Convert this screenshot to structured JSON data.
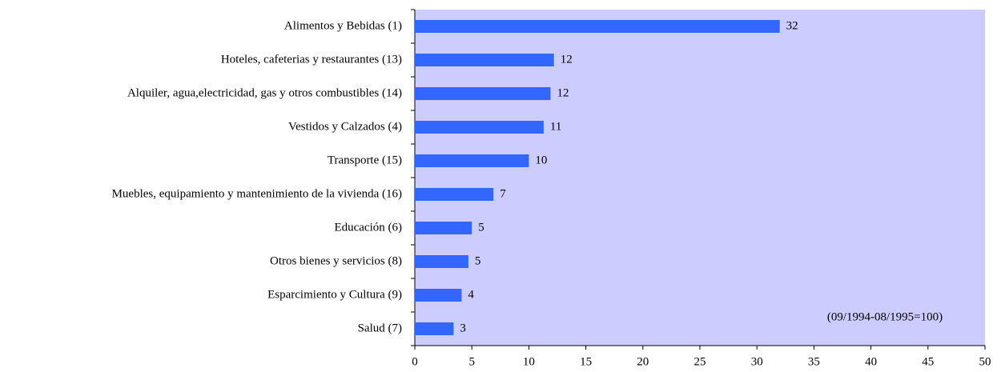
{
  "chart_data": {
    "type": "bar",
    "orientation": "horizontal",
    "categories": [
      "Alimentos y Bebidas (1)",
      "Hoteles, cafeterias y restaurantes (13)",
      "Alquiler, agua,electricidad, gas y otros combustibles (14)",
      "Vestidos y Calzados (4)",
      "Transporte (15)",
      "Muebles, equipamiento y mantenimiento de la vivienda (16)",
      "Educación (6)",
      "Otros bienes y servicios (8)",
      "Esparcimiento y Cultura (9)",
      "Salud (7)"
    ],
    "values": [
      32,
      12.2,
      11.9,
      11.3,
      10,
      6.9,
      5,
      4.7,
      4.1,
      3.4
    ],
    "value_labels": [
      "32",
      "12",
      "12",
      "11",
      "10",
      "7",
      "5",
      "5",
      "4",
      "3"
    ],
    "color": "#3366ff",
    "plot_background": "#ccccff",
    "xlim": [
      0,
      50
    ],
    "xticks": [
      0,
      5,
      10,
      15,
      20,
      25,
      30,
      35,
      40,
      45,
      50
    ],
    "annotation": "(09/1994-08/1995=100)"
  }
}
